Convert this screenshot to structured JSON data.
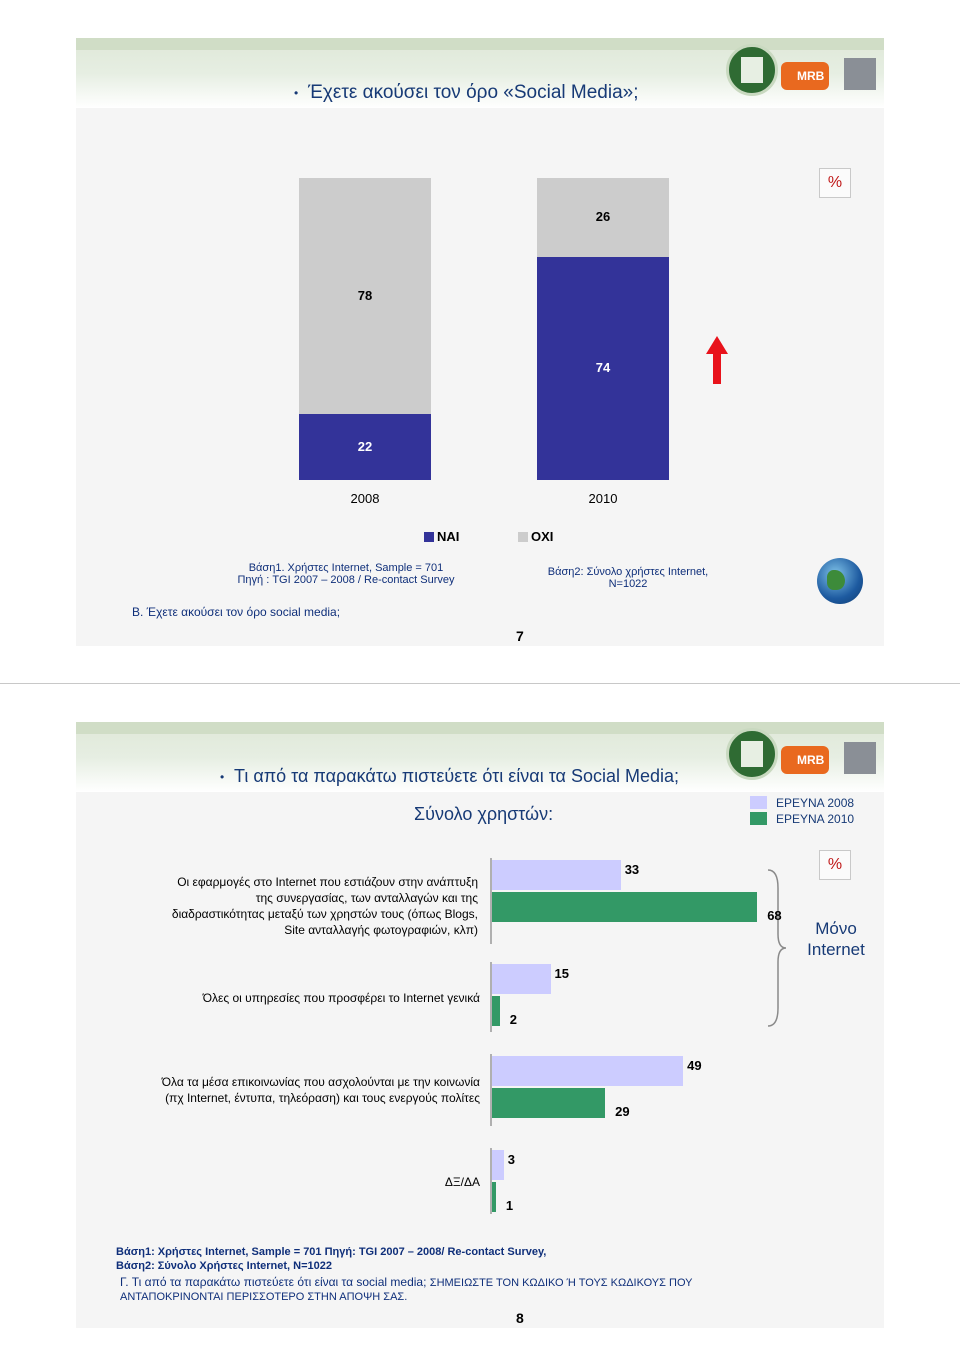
{
  "slide1": {
    "title": "Έχετε ακούσει τον όρο «Social Media»;",
    "percent_sign": "%",
    "legend": {
      "yes": "ΝΑΙ",
      "no": "ΟΧΙ"
    },
    "note_left_line1": "Βάση1. Χρήστες Internet, Sample = 701",
    "note_left_line2": "Πηγή : TGI 2007 – 2008 / Re-contact Survey",
    "note_right_line1": "Βάση2: Σύνολο χρήστες Internet,",
    "note_right_line2": "N=1022",
    "question": "Β. Έχετε ακούσει τον όρο social media;",
    "page_number": "7",
    "colors": {
      "yes": "#333399",
      "no": "#cccccc",
      "arrow": "#e8121b"
    }
  },
  "slide2": {
    "title": "Τι από τα παρακάτω πιστεύετε ότι είναι τα Social Media;",
    "subtitle": "Σύνολο χρηστών:",
    "legend": {
      "y2008": "ΕΡΕΥΝΑ 2008",
      "y2010": "ΕΡΕΥΝΑ 2010"
    },
    "percent_sign": "%",
    "bracket_label_line1": "Μόνο",
    "bracket_label_line2": "Internet",
    "rows": [
      {
        "line1": "Οι εφαρμογές στο Internet που εστιάζουν στην ανάπτυξη",
        "line2": "της συνεργασίας, των ανταλλαγών και της",
        "line3": "διαδραστικότητας μεταξύ των χρηστών τους (όπως Blogs,",
        "line4": "Site ανταλλαγής φωτογραφιών, κλπ)"
      },
      {
        "line1": "Όλες οι υπηρεσίες που προσφέρει το Internet γενικά"
      },
      {
        "line1": "Όλα τα μέσα επικοινωνίας που ασχολούνται με την κοινωνία",
        "line2": "(πχ Internet, έντυπα, τηλεόραση) και τους ενεργούς πολίτες"
      },
      {
        "line1": "ΔΞ/ΔΑ"
      }
    ],
    "foot_line1": "Βάση1: Χρήστες Internet, Sample = 701 Πηγή: TGI 2007 – 2008/ Re-contact Survey,",
    "foot_line2": "Βάση2: Σύνολο Χρήστες Internet, N=1022",
    "foot_line3a": "Γ. Τι από τα παρακάτω πιστεύετε ότι είναι τα social media;",
    "foot_line3b": "ΣΗΜΕΙΩΣΤΕ ΤΟΝ ΚΩΔΙΚΟ Ή ΤΟΥΣ ΚΩΔΙΚΟΥΣ ΠΟΥ",
    "foot_line4": "ΑΝΤΑΠΟΚΡΙΝΟΝΤΑΙ ΠΕΡΙΣΣΟΤΕΡΟ ΣΤΗΝ ΑΠΟΨΗ ΣΑΣ.",
    "page_number": "8",
    "colors": {
      "y2008": "#ccccff",
      "y2010": "#339966"
    }
  },
  "chart_data": [
    {
      "type": "bar",
      "stacked": true,
      "unit": "%",
      "categories": [
        "2008",
        "2010"
      ],
      "series": [
        {
          "name": "ΝΑΙ",
          "values": [
            22,
            74
          ]
        },
        {
          "name": "ΟΧΙ",
          "values": [
            78,
            26
          ]
        }
      ],
      "ylim": [
        0,
        100
      ],
      "legend": "bottom"
    },
    {
      "type": "bar",
      "orientation": "horizontal",
      "unit": "%",
      "categories": [
        "Οι εφαρμογές στο Internet που εστιάζουν στην ανάπτυξη της συνεργασίας, των ανταλλαγών και της διαδραστικότητας μεταξύ των χρηστών τους (όπως Blogs, Site ανταλλαγής φωτογραφιών, κλπ)",
        "Όλες οι υπηρεσίες που προσφέρει το Internet γενικά",
        "Όλα τα μέσα επικοινωνίας που ασχολούνται με την κοινωνία (πχ Internet, έντυπα, τηλεόραση) και τους ενεργούς πολίτες",
        "ΔΞ/ΔΑ"
      ],
      "series": [
        {
          "name": "ΕΡΕΥΝΑ 2008",
          "values": [
            33,
            15,
            49,
            3
          ]
        },
        {
          "name": "ΕΡΕΥΝΑ 2010",
          "values": [
            68,
            2,
            29,
            1
          ]
        }
      ],
      "legend": "top-right"
    }
  ]
}
